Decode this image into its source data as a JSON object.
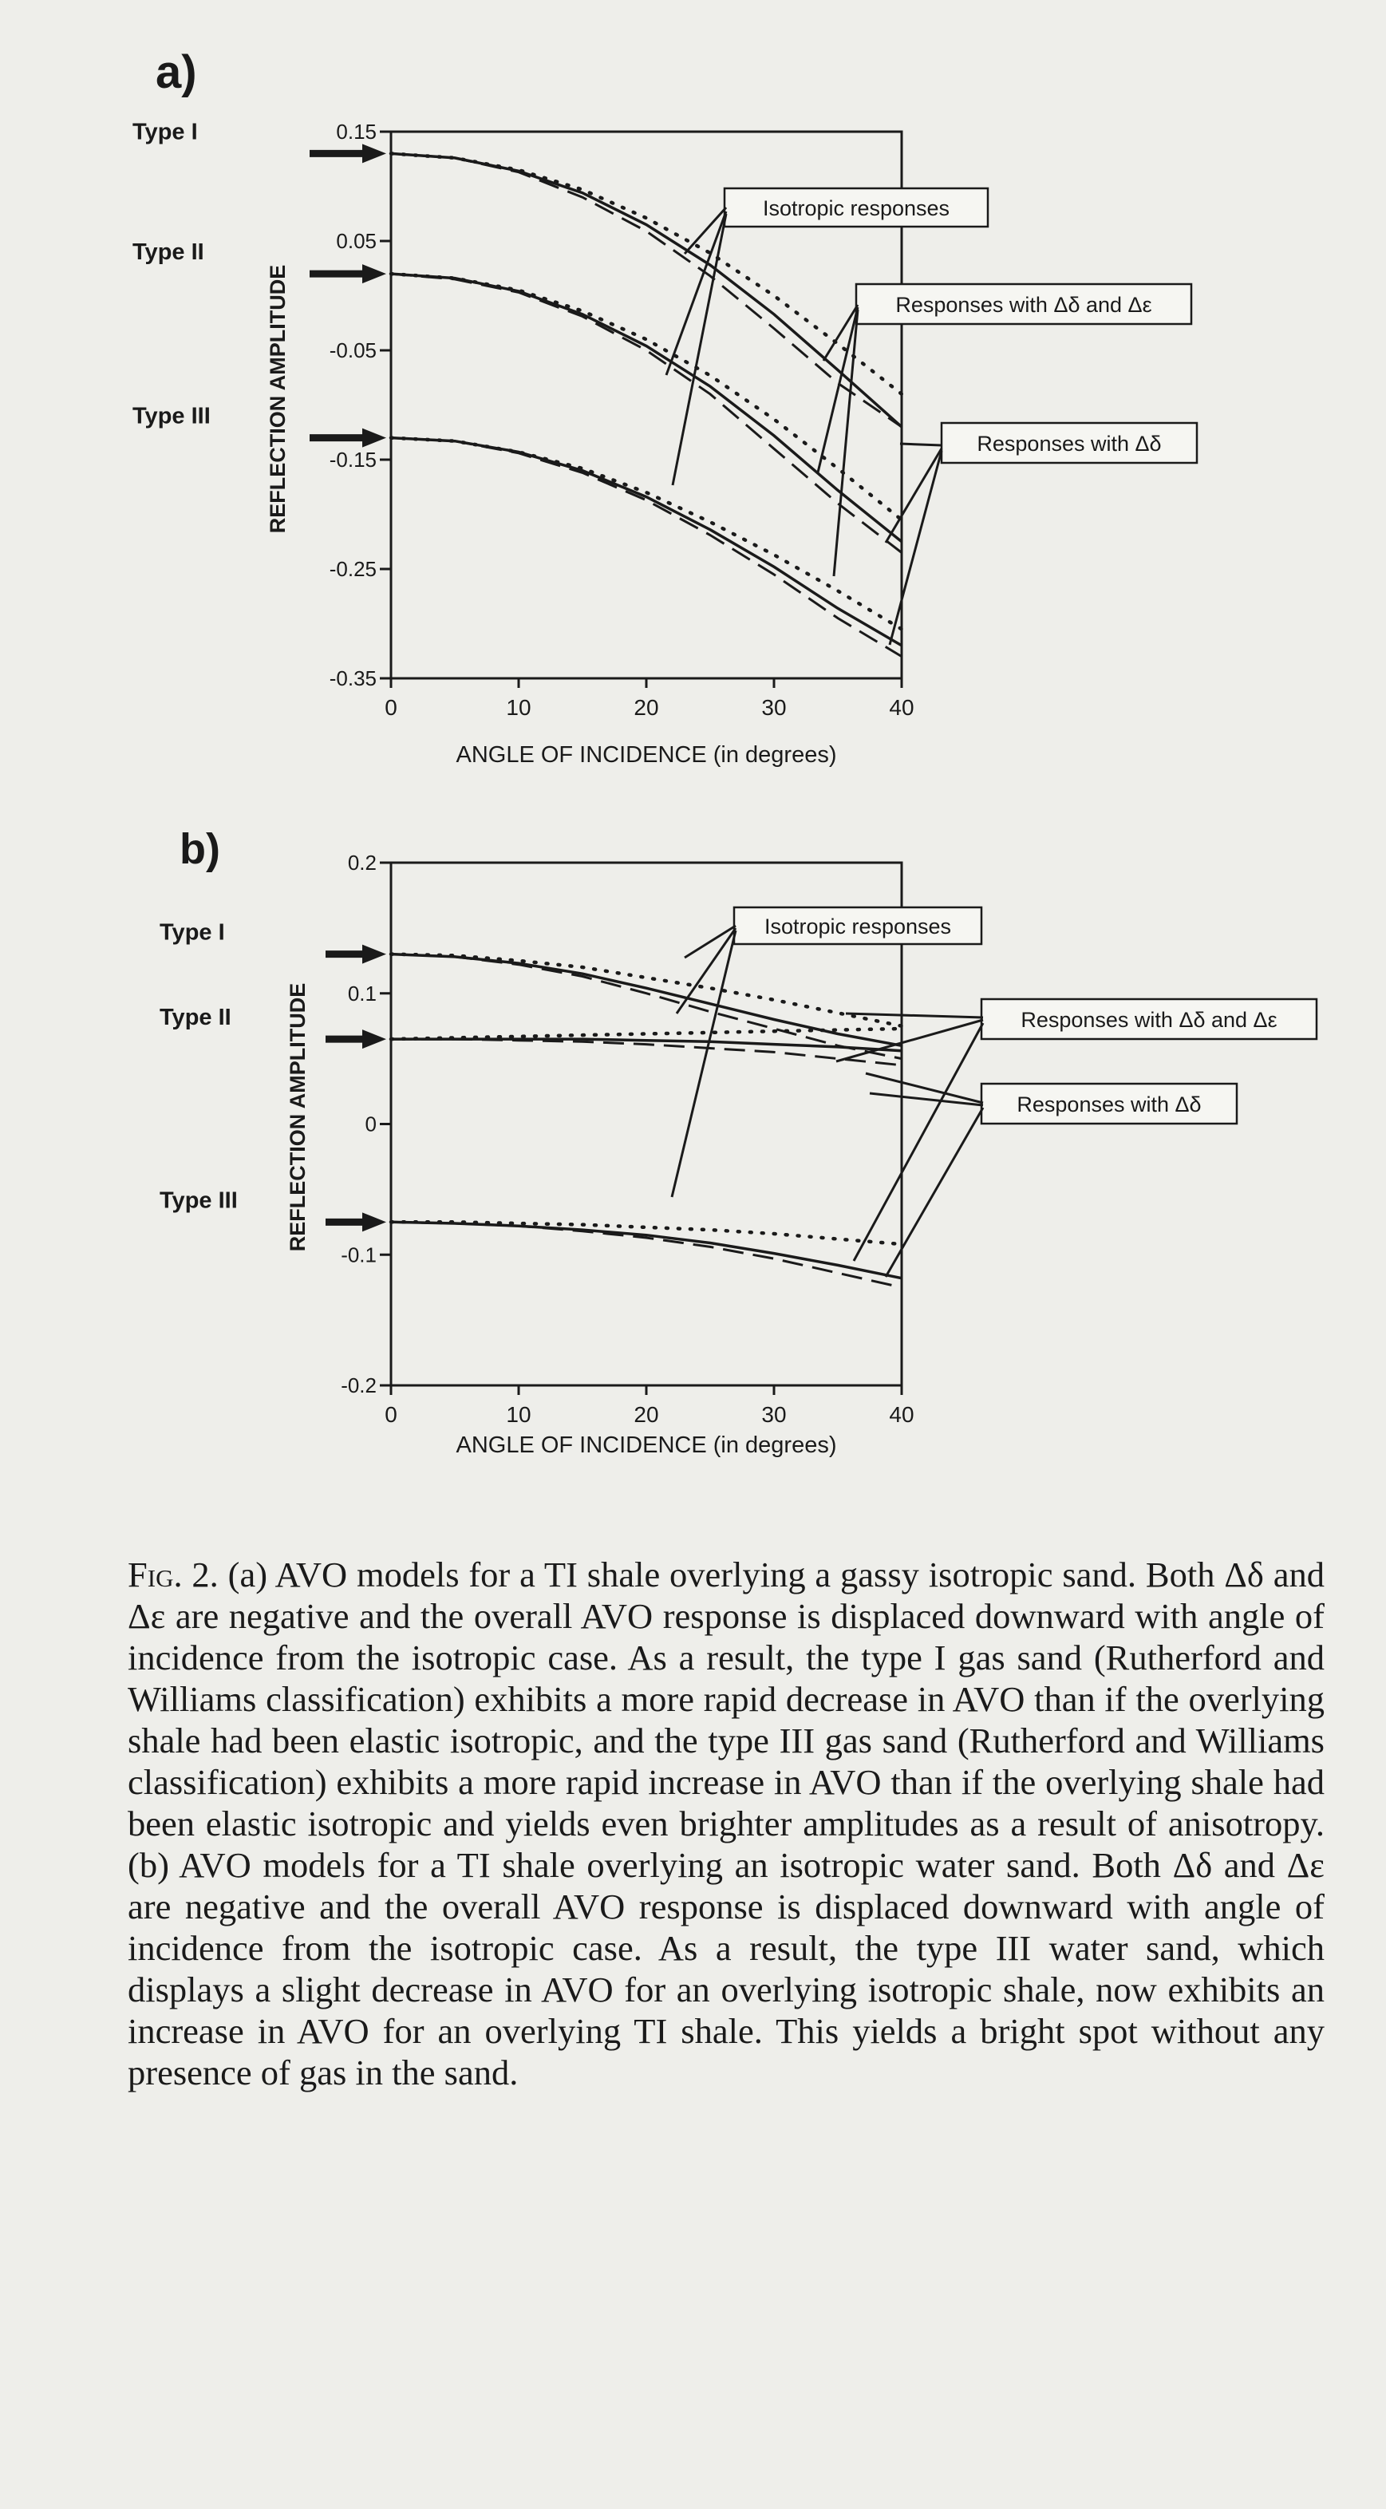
{
  "chart_data": [
    {
      "panel": "a)",
      "type": "line",
      "xlabel": "ANGLE OF INCIDENCE (in degrees)",
      "ylabel": "REFLECTION AMPLITUDE",
      "xlim": [
        0,
        40
      ],
      "ylim": [
        -0.35,
        0.15
      ],
      "xticks": [
        0,
        10,
        20,
        30,
        40
      ],
      "yticks": [
        0.15,
        0.05,
        -0.05,
        -0.15,
        -0.25,
        -0.35
      ],
      "ytick_labels": [
        "0.15",
        "0.05",
        "-0.05",
        "-0.15",
        "-0.25",
        "-0.35"
      ],
      "type_labels": [
        {
          "label": "Type I",
          "value": 0.13
        },
        {
          "label": "Type II",
          "value": 0.02
        },
        {
          "label": "Type III",
          "value": -0.13
        }
      ],
      "x": [
        0,
        5,
        10,
        15,
        20,
        25,
        30,
        35,
        40
      ],
      "groups": [
        {
          "type": "Type I",
          "isotropic": [
            0.13,
            0.126,
            0.115,
            0.097,
            0.071,
            0.039,
            0.0,
            -0.044,
            -0.09
          ],
          "delta_delta_epsilon": [
            0.13,
            0.126,
            0.113,
            0.09,
            0.059,
            0.018,
            -0.03,
            -0.08,
            -0.12
          ],
          "delta_delta": [
            0.13,
            0.126,
            0.114,
            0.094,
            0.065,
            0.028,
            -0.017,
            -0.068,
            -0.12
          ]
        },
        {
          "type": "Type II",
          "isotropic": [
            0.02,
            0.016,
            0.005,
            -0.014,
            -0.04,
            -0.073,
            -0.113,
            -0.158,
            -0.205
          ],
          "delta_delta_epsilon": [
            0.02,
            0.015,
            0.003,
            -0.019,
            -0.05,
            -0.09,
            -0.14,
            -0.19,
            -0.235
          ],
          "delta_delta": [
            0.02,
            0.016,
            0.004,
            -0.017,
            -0.046,
            -0.083,
            -0.128,
            -0.178,
            -0.225
          ]
        },
        {
          "type": "Type III",
          "isotropic": [
            -0.13,
            -0.133,
            -0.143,
            -0.158,
            -0.18,
            -0.207,
            -0.237,
            -0.27,
            -0.305
          ],
          "delta_delta_epsilon": [
            -0.13,
            -0.133,
            -0.144,
            -0.162,
            -0.187,
            -0.219,
            -0.255,
            -0.295,
            -0.33
          ],
          "delta_delta": [
            -0.13,
            -0.133,
            -0.143,
            -0.16,
            -0.184,
            -0.214,
            -0.248,
            -0.286,
            -0.32
          ]
        }
      ],
      "annotations": [
        "Isotropic responses",
        "Responses with Δδ and Δε",
        "Responses with Δδ"
      ]
    },
    {
      "panel": "b)",
      "type": "line",
      "xlabel": "ANGLE OF INCIDENCE (in degrees)",
      "ylabel": "REFLECTION AMPLITUDE",
      "xlim": [
        0,
        40
      ],
      "ylim": [
        -0.2,
        0.2
      ],
      "xticks": [
        0,
        10,
        20,
        30,
        40
      ],
      "yticks": [
        0.2,
        0.1,
        0,
        -0.1,
        -0.2
      ],
      "ytick_labels": [
        "0.2",
        "0.1",
        "0",
        "-0.1",
        "-0.2"
      ],
      "type_labels": [
        {
          "label": "Type I",
          "value": 0.13
        },
        {
          "label": "Type II",
          "value": 0.065
        },
        {
          "label": "Type III",
          "value": -0.075
        }
      ],
      "x": [
        0,
        5,
        10,
        15,
        20,
        25,
        30,
        35,
        40
      ],
      "groups": [
        {
          "type": "Type I",
          "isotropic": [
            0.13,
            0.129,
            0.125,
            0.12,
            0.112,
            0.104,
            0.095,
            0.085,
            0.075
          ],
          "delta_delta_epsilon": [
            0.13,
            0.128,
            0.122,
            0.113,
            0.1,
            0.086,
            0.073,
            0.06,
            0.05
          ],
          "delta_delta": [
            0.13,
            0.128,
            0.123,
            0.115,
            0.104,
            0.092,
            0.08,
            0.069,
            0.06
          ]
        },
        {
          "type": "Type II",
          "isotropic": [
            0.065,
            0.066,
            0.067,
            0.068,
            0.069,
            0.07,
            0.071,
            0.072,
            0.073
          ],
          "delta_delta_epsilon": [
            0.065,
            0.065,
            0.064,
            0.063,
            0.061,
            0.058,
            0.055,
            0.05,
            0.045
          ],
          "delta_delta": [
            0.065,
            0.065,
            0.065,
            0.065,
            0.064,
            0.063,
            0.061,
            0.059,
            0.056
          ]
        },
        {
          "type": "Type III",
          "isotropic": [
            -0.075,
            -0.075,
            -0.076,
            -0.077,
            -0.079,
            -0.081,
            -0.084,
            -0.088,
            -0.092
          ],
          "delta_delta_epsilon": [
            -0.075,
            -0.076,
            -0.078,
            -0.082,
            -0.087,
            -0.094,
            -0.103,
            -0.114,
            -0.125
          ],
          "delta_delta": [
            -0.075,
            -0.076,
            -0.078,
            -0.081,
            -0.085,
            -0.091,
            -0.099,
            -0.108,
            -0.118
          ]
        }
      ],
      "annotations": [
        "Isotropic responses",
        "Responses with Δδ and Δε",
        "Responses with Δδ"
      ]
    }
  ],
  "caption": {
    "label": "Fig. 2.",
    "text": " (a) AVO models for a TI shale overlying a gassy isotropic sand. Both Δδ and Δε are negative and the overall AVO response is displaced downward with angle of incidence from the isotropic case. As a result, the type I gas sand (Rutherford and Williams classification) exhibits a more rapid decrease in AVO than if the overlying shale had been elastic isotropic, and the type III gas sand (Rutherford and Williams classification) exhibits a more rapid increase in AVO than if the overlying shale had been elastic isotropic and yields even brighter amplitudes as a result of anisotropy. (b) AVO models for a TI shale overlying an isotropic water sand. Both Δδ and Δε are negative and the overall AVO response is displaced downward with angle of incidence from the isotropic case. As a result, the type III water sand, which displays a slight decrease in AVO for an overlying isotropic shale, now exhibits an increase in AVO for an overlying TI shale. This yields a bright spot without any presence of gas in the sand."
  }
}
